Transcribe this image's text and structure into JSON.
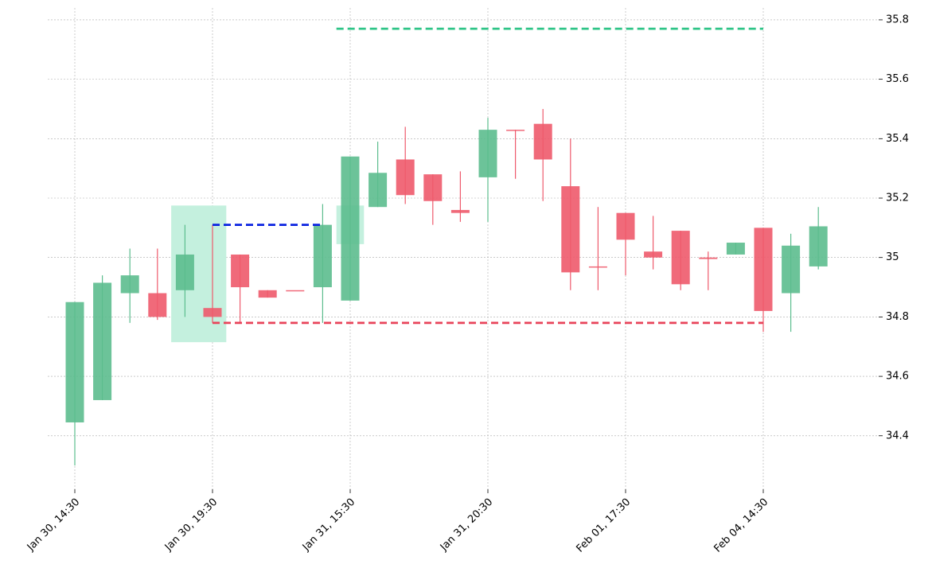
{
  "chart_data": {
    "type": "candlestick",
    "categories": [
      "Jan 30, 14:30",
      null,
      null,
      null,
      null,
      "Jan 30, 19:30",
      null,
      null,
      null,
      null,
      "Jan 31, 15:30",
      null,
      null,
      null,
      null,
      "Jan 31, 20:30",
      null,
      null,
      null,
      null,
      "Feb 01, 17:30",
      null,
      null,
      null,
      null,
      "Feb 04, 14:30",
      null,
      null
    ],
    "open": [
      34.445,
      34.52,
      34.88,
      34.88,
      34.89,
      34.83,
      35.01,
      34.89,
      34.89,
      34.9,
      34.855,
      35.17,
      35.33,
      35.28,
      35.16,
      35.27,
      35.43,
      35.45,
      35.24,
      34.97,
      35.15,
      35.02,
      35.09,
      35.0,
      35.01,
      35.1,
      34.88,
      34.97
    ],
    "high": [
      34.85,
      34.94,
      35.03,
      35.03,
      35.11,
      35.11,
      35.01,
      34.89,
      34.89,
      35.18,
      35.34,
      35.39,
      35.44,
      35.28,
      35.29,
      35.47,
      35.43,
      35.5,
      35.4,
      35.17,
      35.15,
      35.14,
      35.09,
      35.02,
      35.05,
      35.1,
      35.08,
      35.17
    ],
    "low": [
      34.3,
      34.52,
      34.78,
      34.79,
      34.8,
      34.78,
      34.78,
      34.865,
      34.89,
      34.78,
      34.855,
      35.17,
      35.18,
      35.11,
      35.12,
      35.12,
      35.265,
      35.19,
      34.89,
      34.89,
      34.94,
      34.96,
      34.89,
      34.89,
      35.01,
      34.75,
      34.75,
      34.96
    ],
    "close": [
      34.85,
      34.915,
      34.94,
      34.8,
      35.01,
      34.8,
      34.9,
      34.865,
      34.89,
      35.11,
      35.34,
      35.285,
      35.21,
      35.19,
      35.15,
      35.43,
      35.43,
      35.33,
      34.95,
      34.97,
      35.06,
      35.0,
      34.91,
      34.995,
      35.05,
      34.82,
      35.04,
      35.105
    ],
    "up_color": "#5cbd8e",
    "down_color": "#ee5a6c",
    "zones": [
      {
        "x": [
          3.5,
          5.5
        ],
        "y": [
          34.715,
          35.175
        ],
        "color": "#c4f0de"
      },
      {
        "x": [
          9.5,
          10.5
        ],
        "y": [
          35.045,
          35.175
        ],
        "color": "#c4f0de"
      }
    ],
    "levels": [
      {
        "y": 35.77,
        "x": [
          9.5,
          25
        ],
        "color": "#2ec487"
      },
      {
        "y": 35.11,
        "x": [
          5,
          9
        ],
        "color": "#0a22e0"
      },
      {
        "y": 34.78,
        "x": [
          5,
          25
        ],
        "color": "#e8445a"
      }
    ],
    "ylim": [
      34.22,
      35.84
    ],
    "yticks": [
      34.4,
      34.6,
      34.8,
      35.0,
      35.2,
      35.4,
      35.6,
      35.8
    ],
    "grid": true
  }
}
